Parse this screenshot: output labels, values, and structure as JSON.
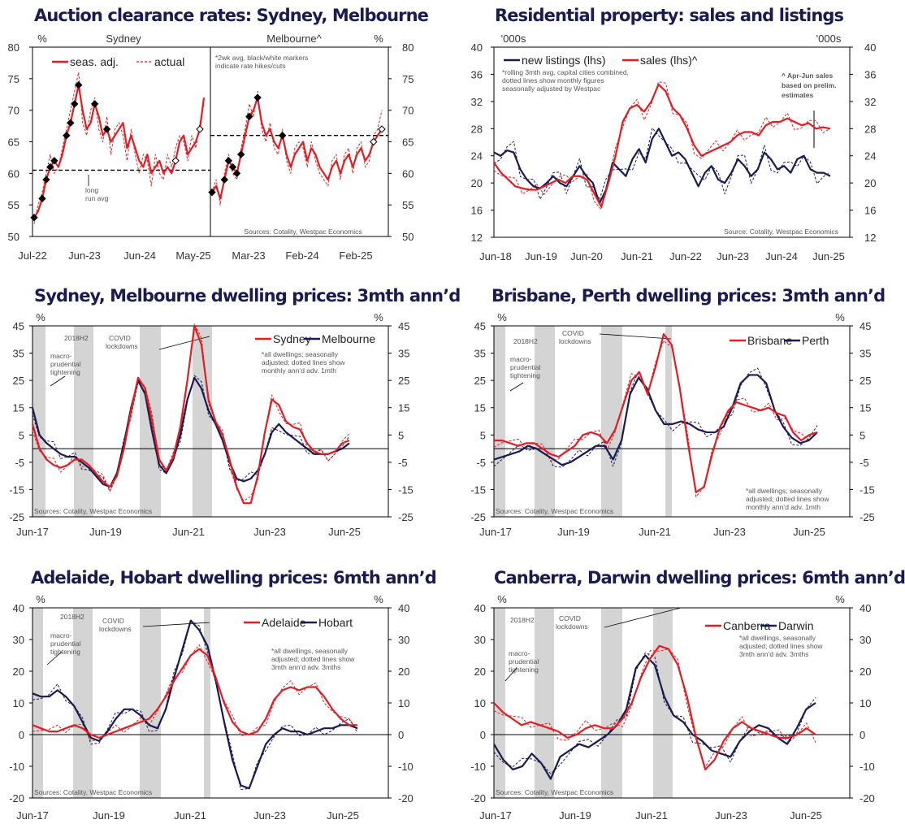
{
  "colors": {
    "red": "#e01e25",
    "navy": "#1b1b4f",
    "shade": "#d4d4d4",
    "grid": "#000000"
  },
  "chart_data": [
    {
      "type": "line",
      "title": "Auction clearance rates: Sydney, Melbourne",
      "left_unit": "%",
      "right_unit": "%",
      "panel_labels": [
        "Sydney",
        "Melbourne^"
      ],
      "ylim": [
        50,
        80
      ],
      "y_ticks": [
        "50",
        "55",
        "60",
        "65",
        "70",
        "75",
        "80"
      ],
      "x_ticks": [
        "Jul-22",
        "Jun-23",
        "Jun-24",
        "May-25",
        "Mar-23",
        "Feb-24",
        "Feb-25"
      ],
      "legend": [
        "seas. adj.",
        "actual"
      ],
      "note": [
        "*2wk avg, black/white markers",
        "indicate rate hikes/cuts"
      ],
      "long_run_avg_label": [
        "long",
        "run avg"
      ],
      "long_run_avg": 60.5,
      "long_run_avg_melbourne": 66,
      "source": "Sources: Cotality, Westpac Economics",
      "series": [
        {
          "name": "Sydney seas. adj.",
          "values": [
            53,
            54,
            56,
            59,
            61,
            62,
            61,
            63,
            66,
            68,
            71,
            74,
            70,
            67,
            68,
            71,
            69,
            66,
            67,
            65,
            66,
            67,
            68,
            64,
            66,
            64,
            62,
            61,
            63,
            60,
            61,
            62,
            60,
            61,
            60,
            62,
            65,
            66,
            63,
            64,
            65,
            67,
            72
          ]
        },
        {
          "name": "Sydney actual",
          "values": [
            52,
            55,
            57,
            60,
            63,
            60,
            61,
            64,
            67,
            70,
            73,
            76,
            68,
            66,
            70,
            72,
            67,
            65,
            69,
            63,
            67,
            68,
            66,
            62,
            67,
            63,
            60,
            63,
            62,
            58,
            63,
            60,
            59,
            63,
            61,
            64,
            66,
            65,
            62,
            66,
            64,
            68,
            71
          ]
        },
        {
          "name": "Melbourne seas. adj.",
          "values": [
            57,
            58,
            56,
            59,
            62,
            61,
            60,
            63,
            66,
            69,
            70,
            72,
            68,
            66,
            67,
            65,
            64,
            66,
            63,
            61,
            63,
            64,
            65,
            62,
            64,
            63,
            61,
            60,
            59,
            61,
            62,
            60,
            62,
            63,
            61,
            63,
            64,
            62,
            63,
            65,
            66,
            67
          ]
        },
        {
          "name": "Melbourne actual",
          "values": [
            57,
            59,
            55,
            60,
            63,
            60,
            59,
            64,
            67,
            71,
            69,
            73,
            67,
            65,
            68,
            64,
            63,
            67,
            62,
            60,
            64,
            65,
            64,
            61,
            65,
            62,
            60,
            59,
            58,
            62,
            63,
            59,
            63,
            64,
            60,
            64,
            65,
            61,
            62,
            66,
            67,
            70
          ]
        }
      ]
    },
    {
      "type": "line",
      "title": "Residential property: sales and listings",
      "left_unit": "'000s",
      "right_unit": "'000s",
      "ylim": [
        12,
        40
      ],
      "y_ticks": [
        "12",
        "16",
        "20",
        "24",
        "28",
        "32",
        "36",
        "40"
      ],
      "x_ticks": [
        "Jun-18",
        "Jun-19",
        "Jun-20",
        "Jun-21",
        "Jun-22",
        "Jun-23",
        "Jun-24",
        "Jun-25"
      ],
      "legend": [
        "new listings (lhs)",
        "sales (lhs)^"
      ],
      "note": [
        "*rolling 3mth avg, capital cities combined,",
        "dotted lines show monthly figures",
        "seasonally adjusted by Westpac"
      ],
      "annotation": [
        "^ Apr-Jun sales",
        "based on prelim.",
        "estimates"
      ],
      "source": "Source: Cotality, Westpac Economics",
      "series": [
        {
          "name": "new listings",
          "values": [
            24.5,
            24.0,
            24.8,
            24.5,
            22.0,
            20.5,
            19.5,
            19.2,
            20.0,
            21.0,
            20.0,
            19.5,
            21.0,
            22.5,
            21.0,
            20.0,
            17.0,
            19.0,
            23.0,
            22.0,
            21.0,
            23.5,
            25.0,
            23.0,
            26.5,
            28.0,
            26.0,
            24.0,
            24.5,
            23.5,
            21.5,
            19.5,
            21.5,
            22.5,
            20.5,
            20.0,
            21.5,
            23.5,
            22.5,
            21.0,
            22.0,
            24.5,
            23.5,
            22.0,
            22.5,
            21.5,
            23.5,
            24.0,
            22.0,
            21.5,
            21.5,
            21.0
          ]
        },
        {
          "name": "sales",
          "values": [
            23.0,
            21.5,
            20.5,
            19.5,
            19.2,
            19.0,
            19.0,
            19.5,
            20.0,
            20.5,
            20.0,
            21.0,
            21.0,
            20.5,
            18.5,
            16.5,
            20.0,
            24.0,
            29.0,
            31.0,
            31.5,
            30.5,
            32.0,
            34.5,
            33.5,
            31.0,
            30.0,
            28.0,
            25.5,
            24.0,
            24.5,
            25.0,
            25.5,
            26.0,
            27.0,
            27.5,
            27.5,
            27.0,
            28.5,
            29.0,
            29.0,
            29.5,
            29.0,
            28.5,
            28.8,
            28.0,
            28.2,
            28.0
          ]
        }
      ]
    },
    {
      "type": "line",
      "title": "Sydney, Melbourne dwelling prices: 3mth ann’d",
      "left_unit": "%",
      "right_unit": "%",
      "ylim": [
        -25,
        45
      ],
      "y_ticks": [
        "-25",
        "-15",
        "-5",
        "5",
        "15",
        "25",
        "35",
        "45"
      ],
      "x_ticks": [
        "Jun-17",
        "Jun-19",
        "Jun-21",
        "Jun-23",
        "Jun-25"
      ],
      "legend": [
        "Sydney",
        "Melbourne"
      ],
      "shade_labels": [
        "2018H2",
        "COVID",
        "lockdowns"
      ],
      "macro_label": [
        "macro-",
        "prudential",
        "tightening"
      ],
      "note": [
        "*all dwellings; seasonally",
        "adjusted; dotted lines show",
        "monthly ann’d adv. 1mth"
      ],
      "source": "Sources: Cotality, Westpac Economics",
      "series": [
        {
          "name": "Sydney",
          "values": [
            9,
            0,
            -4,
            -6,
            -7,
            -6,
            -4,
            -4,
            -6,
            -9,
            -12,
            -14,
            -10,
            0,
            14,
            26,
            22,
            10,
            -4,
            -8,
            -3,
            8,
            25,
            45,
            38,
            18,
            10,
            5,
            -4,
            -14,
            -20,
            -20,
            -10,
            6,
            18,
            16,
            10,
            8,
            7,
            2,
            -1,
            -2,
            -2,
            -1,
            2,
            3
          ]
        },
        {
          "name": "Melbourne",
          "values": [
            15,
            5,
            2,
            0,
            -2,
            -3,
            -3,
            -5,
            -7,
            -10,
            -13,
            -14,
            -9,
            2,
            15,
            25,
            20,
            6,
            -6,
            -9,
            -4,
            5,
            18,
            26,
            22,
            14,
            9,
            3,
            -5,
            -11,
            -12,
            -11,
            -8,
            -2,
            6,
            9,
            6,
            4,
            2,
            0,
            -2,
            -2,
            -2,
            -1,
            0,
            2
          ]
        }
      ]
    },
    {
      "type": "line",
      "title": "Brisbane, Perth dwelling prices: 3mth ann’d",
      "left_unit": "%",
      "right_unit": "%",
      "ylim": [
        -25,
        45
      ],
      "y_ticks": [
        "-25",
        "-15",
        "-5",
        "5",
        "15",
        "25",
        "35",
        "45"
      ],
      "x_ticks": [
        "Jun-17",
        "Jun-19",
        "Jun-21",
        "Jun-23",
        "Jun-25"
      ],
      "legend": [
        "Brisbane",
        "Perth"
      ],
      "shade_labels": [
        "2018H2",
        "COVID",
        "lockdowns"
      ],
      "macro_label": [
        "macro-",
        "prudential",
        "tightening"
      ],
      "note": [
        "*all dwellings; seasonally",
        "adjusted; dotted lines show",
        "monthly ann’d adv. 1mth"
      ],
      "source": "Sources: Cotality, Westpac Economics",
      "series": [
        {
          "name": "Brisbane",
          "values": [
            3,
            3,
            2,
            1,
            2,
            2,
            0,
            -2,
            -3,
            -1,
            1,
            5,
            6,
            5,
            2,
            7,
            16,
            25,
            28,
            20,
            30,
            42,
            38,
            22,
            2,
            -16,
            -14,
            -2,
            8,
            14,
            17,
            16,
            15,
            14,
            15,
            13,
            12,
            6,
            3,
            5,
            6
          ]
        },
        {
          "name": "Perth",
          "values": [
            -4,
            -3,
            -2,
            -1,
            1,
            0,
            -2,
            -4,
            -6,
            -5,
            -3,
            -1,
            1,
            1,
            -4,
            3,
            20,
            26,
            22,
            14,
            9,
            9,
            10,
            9,
            7,
            6,
            6,
            8,
            15,
            24,
            27,
            27,
            24,
            14,
            8,
            4,
            2,
            3,
            6
          ]
        }
      ]
    },
    {
      "type": "line",
      "title": "Adelaide, Hobart dwelling prices: 6mth ann’d",
      "left_unit": "%",
      "right_unit": "%",
      "ylim": [
        -20,
        40
      ],
      "y_ticks": [
        "-20",
        "-10",
        "0",
        "10",
        "20",
        "30",
        "40"
      ],
      "x_ticks": [
        "Jun-17",
        "Jun-19",
        "Jun-21",
        "Jun-23",
        "Jun-25"
      ],
      "legend": [
        "Adelaide",
        "Hobart"
      ],
      "shade_labels": [
        "2018H2",
        "COVID",
        "lockdowns"
      ],
      "macro_label": [
        "macro-",
        "prudential",
        "tightening"
      ],
      "note": [
        "*all dwellings, seasonally",
        "adjusted; dotted lines show",
        "3mth ann’d adv. 3mths"
      ],
      "source": "Sources: Cotality, Westpac Economics",
      "series": [
        {
          "name": "Adelaide",
          "values": [
            3,
            2,
            1,
            1,
            2,
            3,
            2,
            0,
            -1,
            0,
            1,
            2,
            3,
            4,
            5,
            8,
            12,
            17,
            21,
            25,
            27,
            25,
            18,
            10,
            4,
            1,
            0,
            1,
            5,
            11,
            14,
            15,
            14,
            15,
            15,
            12,
            8,
            5,
            3,
            3
          ]
        },
        {
          "name": "Hobart",
          "values": [
            13,
            12,
            12,
            14,
            12,
            9,
            4,
            -1,
            -2,
            1,
            5,
            8,
            8,
            6,
            3,
            2,
            8,
            18,
            27,
            36,
            33,
            28,
            17,
            4,
            -8,
            -16,
            -17,
            -10,
            -3,
            0,
            2,
            1,
            1,
            0,
            1,
            2,
            2,
            3,
            3,
            2
          ]
        }
      ]
    },
    {
      "type": "line",
      "title": "Canberra, Darwin dwelling prices: 6mth ann’d",
      "left_unit": "%",
      "right_unit": "%",
      "ylim": [
        -20,
        40
      ],
      "y_ticks": [
        "-20",
        "-10",
        "0",
        "10",
        "20",
        "30",
        "40"
      ],
      "x_ticks": [
        "Jun-17",
        "Jun-19",
        "Jun-21",
        "Jun-23",
        "Jun-25"
      ],
      "legend": [
        "Canberra",
        "Darwin"
      ],
      "shade_labels": [
        "2018H2",
        "COVID",
        "lockdowns"
      ],
      "macro_label": [
        "macro-",
        "prudential",
        "tightening"
      ],
      "note": [
        "*all dwellings, seasonally",
        "adjusted; dotted lines show",
        "3mth ann’d adv. 3mths"
      ],
      "source": "Sources: Cotality, Westpac Economics",
      "series": [
        {
          "name": "Canberra",
          "values": [
            10,
            7,
            5,
            3,
            4,
            3,
            2,
            1,
            -1,
            0,
            2,
            3,
            2,
            2,
            5,
            10,
            18,
            24,
            28,
            27,
            22,
            12,
            -1,
            -11,
            -8,
            -2,
            2,
            4,
            2,
            1,
            0,
            -1,
            -1,
            0,
            2,
            0
          ]
        },
        {
          "name": "Darwin",
          "values": [
            -3,
            -8,
            -11,
            -10,
            -6,
            -9,
            -14,
            -7,
            -5,
            -3,
            -4,
            -2,
            0,
            3,
            8,
            21,
            25,
            22,
            12,
            6,
            4,
            0,
            -2,
            -5,
            -6,
            -7,
            -2,
            1,
            3,
            2,
            -1,
            -3,
            2,
            8,
            10
          ]
        }
      ]
    }
  ]
}
